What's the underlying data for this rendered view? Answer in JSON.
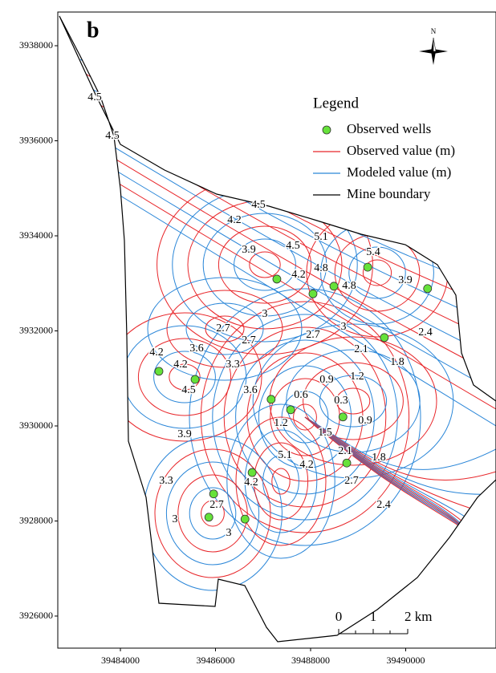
{
  "map": {
    "panel_label": "b",
    "north_label": "N",
    "xlim": [
      39482683,
      39491899
    ],
    "ylim": [
      3925325,
      3938709
    ],
    "xticks": [
      39484000,
      39486000,
      39488000,
      39490000
    ],
    "yticks": [
      3926000,
      3928000,
      3930000,
      3932000,
      3934000,
      3936000,
      3938000
    ],
    "legend": {
      "title": "Legend",
      "items": [
        {
          "name": "Observed wells",
          "color": "#66e23a"
        },
        {
          "name": "Observed value (m)",
          "color": "#e8262a"
        },
        {
          "name": "Modeled value (m)",
          "color": "#2a86d8"
        },
        {
          "name": "Mine boundary",
          "color": "#000000"
        }
      ]
    },
    "scale_bar": {
      "labels": [
        "0",
        "1",
        "2 km"
      ]
    },
    "wells": {
      "x": [
        39487290,
        39488050,
        39488490,
        39489200,
        39490460,
        39489550,
        39484810,
        39485570,
        39487170,
        39487580,
        39488680,
        39488760,
        39486770,
        39485960,
        39485860,
        39486620
      ],
      "y": [
        3933090,
        3932780,
        3932940,
        3933340,
        3932890,
        3931860,
        3931150,
        3930980,
        3930560,
        3930340,
        3930190,
        3929220,
        3929020,
        3928570,
        3928080,
        3928040
      ]
    },
    "contour_labels": [
      "4.5",
      "4.5",
      "4.5",
      "4.2",
      "5.1",
      "5.4",
      "3.9",
      "4.5",
      "4.2",
      "4.8",
      "4.8",
      "3.9",
      "3",
      "2.7",
      "2.7",
      "2.7",
      "3",
      "2.4",
      "2.1",
      "1.8",
      "3.6",
      "3.3",
      "4.2",
      "4.2",
      "4.5",
      "3.6",
      "0.9",
      "1.2",
      "0.6",
      "0.3",
      "0.9",
      "1.2",
      "1.5",
      "2.1",
      "5.1",
      "4.2",
      "1.8",
      "2.7",
      "3.9",
      "3.3",
      "4.2",
      "2.7",
      "3",
      "2.4",
      "3"
    ]
  }
}
